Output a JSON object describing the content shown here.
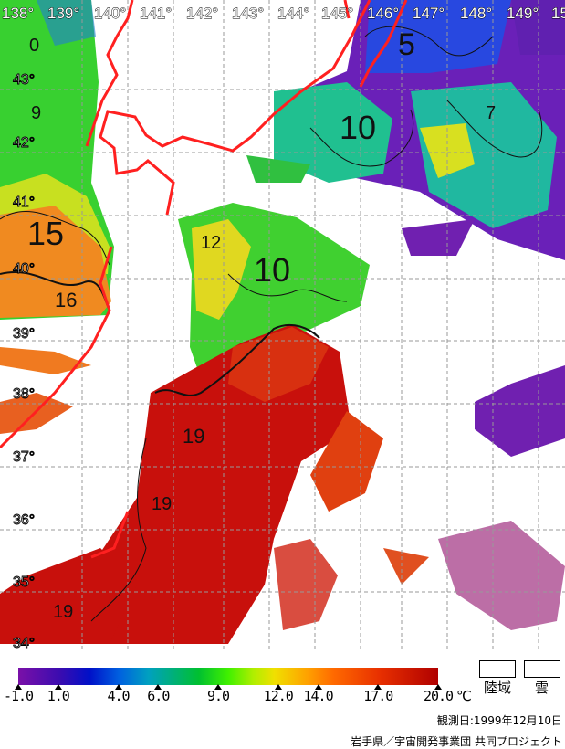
{
  "map": {
    "longitude_labels": [
      "138°",
      "139°",
      "140°",
      "141°",
      "142°",
      "143°",
      "144°",
      "145°",
      "146°",
      "147°",
      "148°",
      "149°",
      "15"
    ],
    "latitude_labels": [
      "43°",
      "42°",
      "41°",
      "40°",
      "39°",
      "38°",
      "37°",
      "36°",
      "35°",
      "34°"
    ],
    "contour_labels": [
      "0",
      "9",
      "15",
      "16",
      "19",
      "12",
      "10",
      "19",
      "19",
      "10",
      "5",
      "7"
    ],
    "coastline_color": "#ff2020"
  },
  "colorbar": {
    "ticks": [
      "-1.0",
      "1.0",
      "4.0",
      "6.0",
      "9.0",
      "12.0",
      "14.0",
      "17.0",
      "20.0"
    ],
    "tick_values": [
      -1,
      1,
      4,
      6,
      9,
      12,
      14,
      17,
      20
    ],
    "range": [
      -1,
      20
    ],
    "unit": "℃"
  },
  "legend": {
    "land": "陸域",
    "cloud": "雲"
  },
  "footer": {
    "observation_date": "観測日:1999年12月10日",
    "credit": "岩手県／宇宙開発事業団 共同プロジェクト"
  }
}
